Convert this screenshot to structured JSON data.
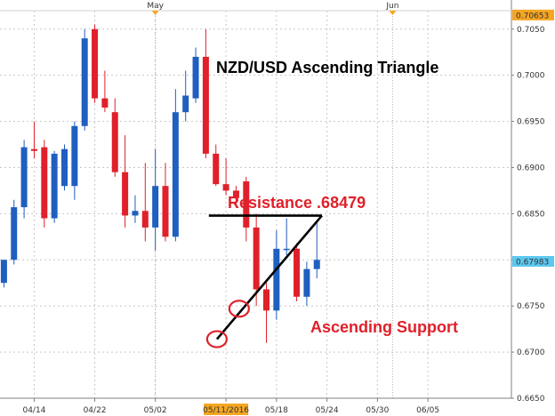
{
  "chart_data": {
    "type": "candlestick",
    "title": "NZD/USD Ascending Triangle",
    "ylim": [
      0.665,
      0.707
    ],
    "y_ticks": [
      "0.7050",
      "0.7000",
      "0.6950",
      "0.6900",
      "0.6850",
      "0.6800",
      "0.6750",
      "0.6700",
      "0.6650"
    ],
    "y_tick_values": [
      0.705,
      0.7,
      0.695,
      0.69,
      0.685,
      0.68,
      0.675,
      0.67,
      0.665
    ],
    "x_ticks": [
      {
        "label": "04/14",
        "index": 3
      },
      {
        "label": "04/22",
        "index": 9
      },
      {
        "label": "05/02",
        "index": 15
      },
      {
        "label": "05/11/2016",
        "index": 22,
        "highlight": true
      },
      {
        "label": "05/18",
        "index": 27
      },
      {
        "label": "05/24",
        "index": 32
      },
      {
        "label": "05/30",
        "index": 37
      },
      {
        "label": "06/05",
        "index": 42
      }
    ],
    "month_markers": [
      {
        "label": "May",
        "index": 15
      },
      {
        "label": "Jun",
        "index": 38.5
      }
    ],
    "price_tags": [
      {
        "label": "0.70653",
        "value": 0.70653,
        "color": "#f5a623"
      },
      {
        "label": "0.67983",
        "value": 0.67983,
        "color": "#5bc8f0"
      }
    ],
    "up_color": "#1f5fbf",
    "down_color": "#e0202a",
    "candles": [
      {
        "open": 0.6775,
        "high": 0.68,
        "low": 0.677,
        "close": 0.68
      },
      {
        "open": 0.68,
        "high": 0.6865,
        "low": 0.6795,
        "close": 0.6857
      },
      {
        "open": 0.6857,
        "high": 0.693,
        "low": 0.6845,
        "close": 0.6922
      },
      {
        "open": 0.692,
        "high": 0.695,
        "low": 0.691,
        "close": 0.6918
      },
      {
        "open": 0.6922,
        "high": 0.693,
        "low": 0.6835,
        "close": 0.6845
      },
      {
        "open": 0.6845,
        "high": 0.6918,
        "low": 0.684,
        "close": 0.6915
      },
      {
        "open": 0.688,
        "high": 0.6925,
        "low": 0.6875,
        "close": 0.692
      },
      {
        "open": 0.688,
        "high": 0.695,
        "low": 0.6865,
        "close": 0.6945
      },
      {
        "open": 0.6945,
        "high": 0.705,
        "low": 0.694,
        "close": 0.704
      },
      {
        "open": 0.705,
        "high": 0.7055,
        "low": 0.697,
        "close": 0.6975
      },
      {
        "open": 0.6975,
        "high": 0.7005,
        "low": 0.696,
        "close": 0.6965
      },
      {
        "open": 0.696,
        "high": 0.6975,
        "low": 0.689,
        "close": 0.6895
      },
      {
        "open": 0.6895,
        "high": 0.6935,
        "low": 0.6835,
        "close": 0.6848
      },
      {
        "open": 0.6848,
        "high": 0.687,
        "low": 0.684,
        "close": 0.6853
      },
      {
        "open": 0.6853,
        "high": 0.6905,
        "low": 0.682,
        "close": 0.6835
      },
      {
        "open": 0.6835,
        "high": 0.692,
        "low": 0.681,
        "close": 0.688
      },
      {
        "open": 0.688,
        "high": 0.6905,
        "low": 0.682,
        "close": 0.6825
      },
      {
        "open": 0.6825,
        "high": 0.6985,
        "low": 0.682,
        "close": 0.696
      },
      {
        "open": 0.696,
        "high": 0.7005,
        "low": 0.695,
        "close": 0.6978
      },
      {
        "open": 0.6975,
        "high": 0.703,
        "low": 0.697,
        "close": 0.702
      },
      {
        "open": 0.702,
        "high": 0.705,
        "low": 0.691,
        "close": 0.6915
      },
      {
        "open": 0.6915,
        "high": 0.6925,
        "low": 0.688,
        "close": 0.6882
      },
      {
        "open": 0.6882,
        "high": 0.691,
        "low": 0.687,
        "close": 0.6875
      },
      {
        "open": 0.6875,
        "high": 0.688,
        "low": 0.686,
        "close": 0.6867
      },
      {
        "open": 0.6885,
        "high": 0.689,
        "low": 0.682,
        "close": 0.6835
      },
      {
        "open": 0.6835,
        "high": 0.685,
        "low": 0.675,
        "close": 0.6768
      },
      {
        "open": 0.6768,
        "high": 0.6775,
        "low": 0.671,
        "close": 0.6745
      },
      {
        "open": 0.6745,
        "high": 0.6832,
        "low": 0.6735,
        "close": 0.6812
      },
      {
        "open": 0.6812,
        "high": 0.6845,
        "low": 0.6805,
        "close": 0.6812
      },
      {
        "open": 0.6812,
        "high": 0.6818,
        "low": 0.6755,
        "close": 0.676
      },
      {
        "open": 0.676,
        "high": 0.6798,
        "low": 0.675,
        "close": 0.679
      },
      {
        "open": 0.679,
        "high": 0.684,
        "low": 0.678,
        "close": 0.68
      }
    ],
    "annotations": {
      "resistance_label": "Resistance .68479",
      "resistance_value": 0.68479,
      "resistance_start_index": 20.3,
      "resistance_end_index": 31.5,
      "support_label": "Ascending Support",
      "support_start": {
        "index": 21.1,
        "value": 0.6714
      },
      "support_end": {
        "index": 31.5,
        "value": 0.68479
      },
      "circles": [
        {
          "index": 21.1,
          "value": 0.6714
        },
        {
          "index": 23.3,
          "value": 0.6747
        }
      ]
    }
  }
}
